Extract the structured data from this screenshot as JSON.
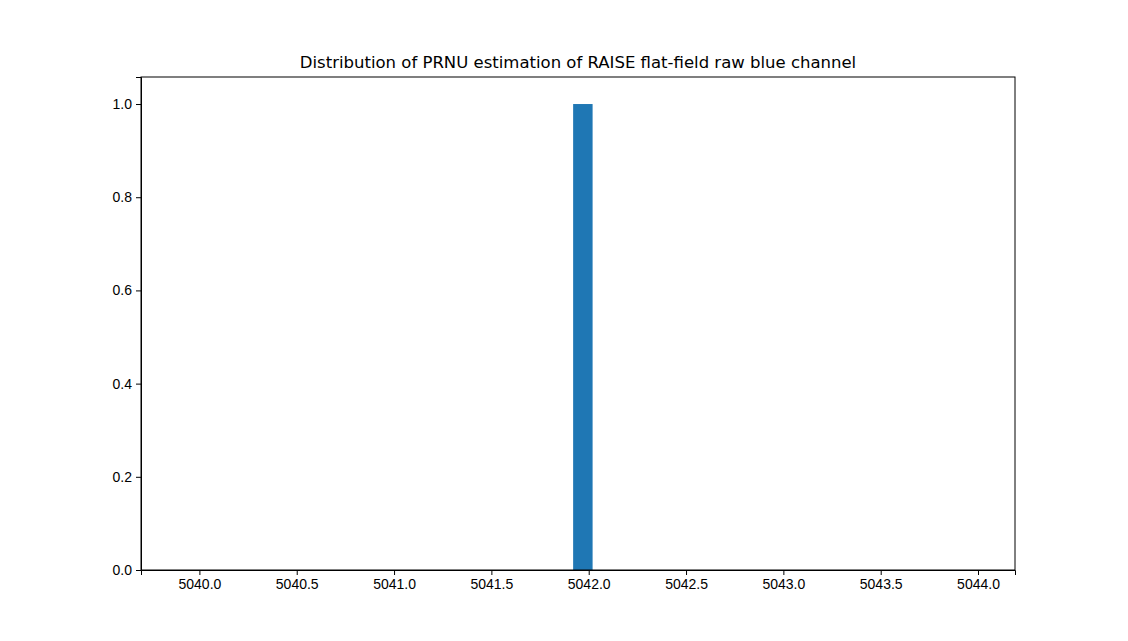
{
  "chart_data": {
    "type": "histogram",
    "title": "Distribution of PRNU estimation of RAISE flat-field raw blue channel",
    "bins": [
      5041.92,
      5042.02
    ],
    "counts": [
      1.0
    ],
    "color": "#1f77b4",
    "xlim": [
      5039.7,
      5044.19
    ],
    "xticks": [
      {
        "value": 5040,
        "label": "5040.0"
      },
      {
        "value": 5040.5,
        "label": "5040.5"
      },
      {
        "value": 5041,
        "label": "5041.0"
      },
      {
        "value": 5041.5,
        "label": "5041.5"
      },
      {
        "value": 5042,
        "label": "5042.0"
      },
      {
        "value": 5042.5,
        "label": "5042.5"
      },
      {
        "value": 5043,
        "label": "5043.0"
      },
      {
        "value": 5043.5,
        "label": "5043.5"
      },
      {
        "value": 5044,
        "label": "5044.0"
      }
    ],
    "ylim": [
      0,
      1.058
    ],
    "yticks": [
      {
        "value": 0,
        "label": "0.0"
      },
      {
        "value": 0.2,
        "label": "0.2"
      },
      {
        "value": 0.4,
        "label": "0.4"
      },
      {
        "value": 0.6,
        "label": "0.6"
      },
      {
        "value": 0.8,
        "label": "0.8"
      },
      {
        "value": 1.0,
        "label": "1.0"
      }
    ]
  }
}
